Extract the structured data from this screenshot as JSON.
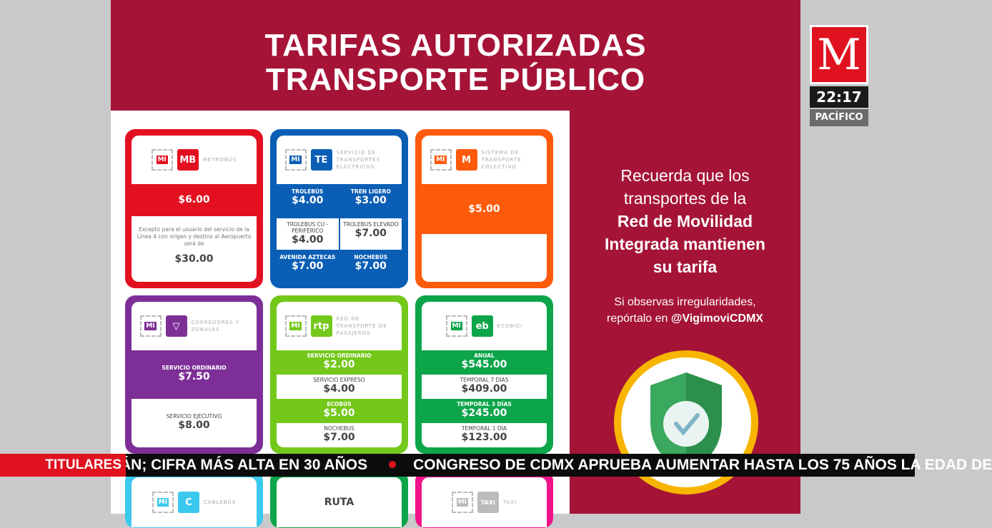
{
  "title": [
    "TARIFAS AUTORIZADAS",
    "TRANSPORTE PÚBLICO"
  ],
  "broadcast": {
    "logo": "M",
    "time": "22:17",
    "zone": "PACÍFICO"
  },
  "cards": {
    "metrobus": {
      "mi": "MI",
      "brand": "MB",
      "name": "METROBÚS",
      "price": "$6.00",
      "note": "Excepto para el usuario del servicio de la Línea 4 con origen y destino al Aeropuerto será de",
      "note_price": "$30.00",
      "color": "#e3101f"
    },
    "ste": {
      "mi": "MI",
      "brand": "TE",
      "name": "SERVICIO DE TRANSPORTES ELÉCTRICOS",
      "items": [
        {
          "label": "TROLEBÚS",
          "price": "$4.00"
        },
        {
          "label": "TREN LIGERO",
          "price": "$3.00"
        },
        {
          "label": "TROLEBUS CU - PERIFÉRICO",
          "price": "$4.00"
        },
        {
          "label": "TROLEBUS ELEVADO",
          "price": "$7.00"
        },
        {
          "label": "AVENIDA AZTECAS",
          "price": "$7.00"
        },
        {
          "label": "NOCHEBÚS",
          "price": "$7.00"
        }
      ],
      "color": "#0b5eb5"
    },
    "metro": {
      "mi": "MI",
      "brand": "M",
      "name": "SISTEMA DE TRANSPORTE COLECTIVO",
      "price": "$5.00",
      "color": "#fe5a0b"
    },
    "corredores": {
      "mi": "MI",
      "brand": "▽",
      "name": "CORREDORES Y ZONALES",
      "items": [
        {
          "label": "SERVICIO ORDINARIO",
          "price": "$7.50"
        },
        {
          "label": "SERVICIO EJECUTIVO",
          "price": "$8.00"
        }
      ],
      "color": "#7d2f97"
    },
    "rtp": {
      "mi": "MI",
      "brand": "rtp",
      "name": "RED DE TRANSPORTE DE PASAJEROS",
      "items": [
        {
          "label": "SERVICIO ORDINARIO",
          "price": "$2.00"
        },
        {
          "label": "SERVICIO EXPRESO",
          "price": "$4.00"
        },
        {
          "label": "ECOBÚS",
          "price": "$5.00"
        },
        {
          "label": "NOCHEBUS",
          "price": "$7.00"
        }
      ],
      "color": "#73c81a"
    },
    "ecobici": {
      "mi": "MI",
      "brand": "eb",
      "name": "ECOBICI",
      "items": [
        {
          "label": "ANUAL",
          "price": "$545.00"
        },
        {
          "label": "TEMPORAL 7 DÍAS",
          "price": "$409.00"
        },
        {
          "label": "TEMPORAL 3 DÍAS",
          "price": "$245.00"
        },
        {
          "label": "TEMPORAL 1 DÍA",
          "price": "$123.00"
        }
      ],
      "color": "#0da54a"
    },
    "cablebus": {
      "mi": "MI",
      "brand": "C",
      "name": "CABLEBÚS",
      "color": "#3cc9ee"
    },
    "ruta": {
      "name": "RUTA",
      "color": "#0da54a"
    },
    "taxi": {
      "mi": "MI",
      "brand": "TAXI",
      "name": "TAXI",
      "color": "#f0138a"
    }
  },
  "right": {
    "line1": "Recuerda que los",
    "line2": "transportes de la",
    "bold1": "Red de Movilidad",
    "bold2": "Integrada mantienen",
    "bold3": "su tarifa",
    "small1": "Si observas irregularidades,",
    "small2": "repórtalo en ",
    "handle": "@VigimoviCDMX"
  },
  "ticker": {
    "label": "TITULARES",
    "item1": "ÁN; CIFRA MÁS ALTA EN 30 AÑOS",
    "item2": "CONGRESO DE CDMX APRUEBA AUMENTAR HASTA LOS 75 AÑOS LA EDAD DE"
  }
}
